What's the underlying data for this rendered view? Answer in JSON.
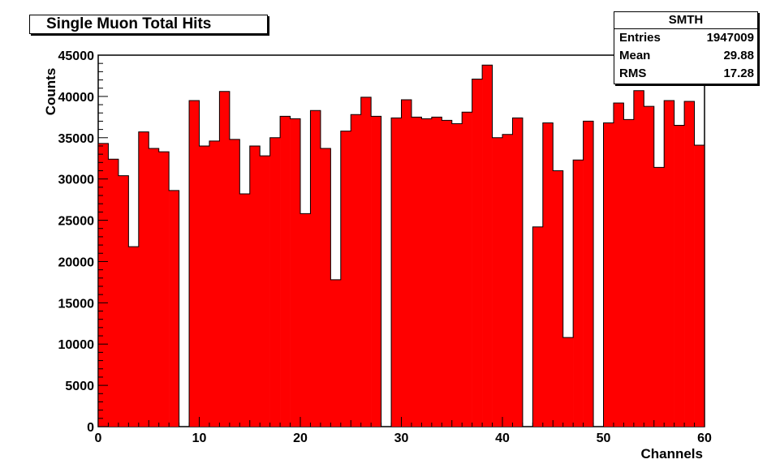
{
  "title": "Single Muon Total Hits",
  "stats": {
    "name": "SMTH",
    "rows": [
      {
        "label": "Entries",
        "value": "1947009"
      },
      {
        "label": "Mean",
        "value": "29.88"
      },
      {
        "label": "RMS",
        "value": "17.28"
      }
    ]
  },
  "chart_data": {
    "type": "bar",
    "title": "Single Muon Total Hits",
    "xlabel": "Channels",
    "ylabel": "Counts",
    "xlim": [
      0,
      60
    ],
    "ylim": [
      0,
      45000
    ],
    "bin_width": 1,
    "x_ticks": [
      "0",
      "10",
      "20",
      "30",
      "40",
      "50",
      "60"
    ],
    "y_ticks": [
      "0",
      "5000",
      "10000",
      "15000",
      "20000",
      "25000",
      "30000",
      "35000",
      "40000",
      "45000"
    ],
    "bar_color": "#ff0000",
    "values": [
      34300,
      32400,
      30400,
      21800,
      35700,
      33700,
      33300,
      28600,
      0,
      39500,
      34000,
      34600,
      40600,
      34800,
      28200,
      34000,
      32800,
      35000,
      37600,
      37300,
      25800,
      38300,
      33700,
      17800,
      35800,
      37800,
      39900,
      37600,
      0,
      37400,
      39600,
      37500,
      37300,
      37500,
      37100,
      36700,
      38100,
      42100,
      43800,
      35000,
      35400,
      37400,
      0,
      24200,
      36800,
      31000,
      10800,
      32300,
      37000,
      0,
      36800,
      39200,
      37200,
      40700,
      38800,
      31400,
      39500,
      36500,
      39400,
      34100
    ]
  }
}
